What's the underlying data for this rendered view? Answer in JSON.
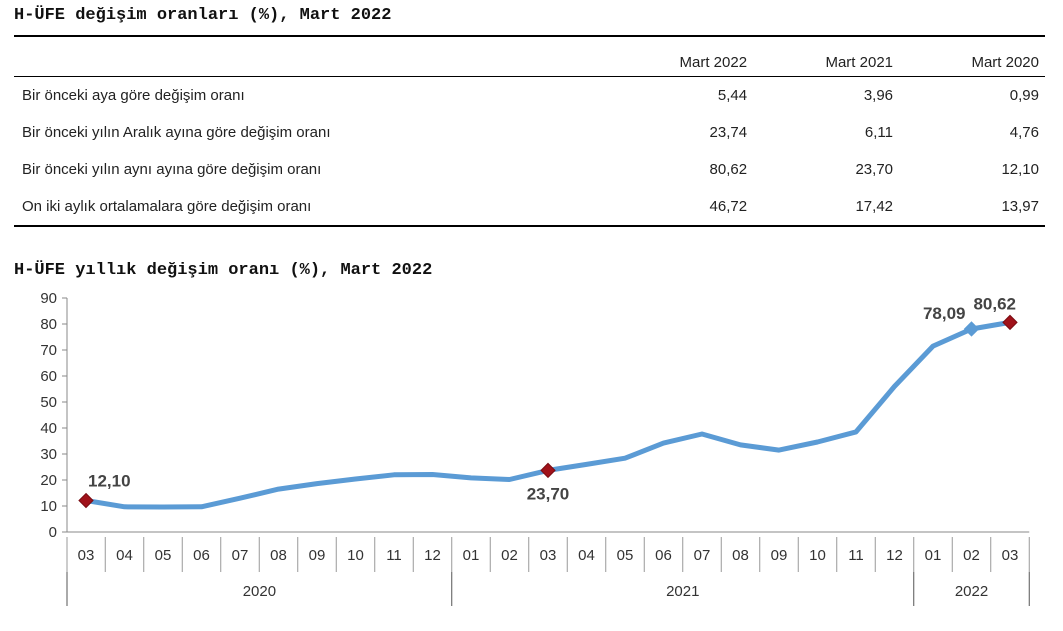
{
  "table": {
    "title": "H-ÜFE değişim oranları (%), Mart 2022",
    "columns": [
      "Mart 2022",
      "Mart 2021",
      "Mart 2020"
    ],
    "rows": [
      {
        "label": "Bir önceki aya göre değişim oranı",
        "values": [
          "5,44",
          "3,96",
          "0,99"
        ]
      },
      {
        "label": "Bir önceki yılın Aralık ayına göre değişim oranı",
        "values": [
          "23,74",
          "6,11",
          "4,76"
        ]
      },
      {
        "label": "Bir önceki yılın aynı ayına göre değişim oranı",
        "values": [
          "80,62",
          "23,70",
          "12,10"
        ]
      },
      {
        "label": "On iki aylık ortalamalara göre değişim oranı",
        "values": [
          "46,72",
          "17,42",
          "13,97"
        ]
      }
    ]
  },
  "chart_data": {
    "type": "line",
    "title": "H-ÜFE yıllık değişim oranı (%), Mart 2022",
    "xlabel": "",
    "ylabel": "",
    "ylim": [
      0,
      90
    ],
    "yticks": [
      0,
      10,
      20,
      30,
      40,
      50,
      60,
      70,
      80,
      90
    ],
    "categories": [
      "03",
      "04",
      "05",
      "06",
      "07",
      "08",
      "09",
      "10",
      "11",
      "12",
      "01",
      "02",
      "03",
      "04",
      "05",
      "06",
      "07",
      "08",
      "09",
      "10",
      "11",
      "12",
      "01",
      "02",
      "03"
    ],
    "years": [
      {
        "label": "2020",
        "count": 10
      },
      {
        "label": "2021",
        "count": 12
      },
      {
        "label": "2022",
        "count": 3
      }
    ],
    "series": [
      {
        "values": [
          12.1,
          9.7,
          9.6,
          9.7,
          13.0,
          16.5,
          18.6,
          20.4,
          22.0,
          22.1,
          20.8,
          20.2,
          23.7,
          26.0,
          28.4,
          34.2,
          37.7,
          33.5,
          31.5,
          34.6,
          38.5,
          56.0,
          71.5,
          78.09,
          80.62
        ],
        "color": "#5b9bd5"
      }
    ],
    "markers": [
      {
        "index": 0,
        "label": "12,10",
        "shape": "diamond",
        "color": "#a0121a"
      },
      {
        "index": 12,
        "label": "23,70",
        "shape": "diamond",
        "color": "#a0121a"
      },
      {
        "index": 23,
        "label": "78,09",
        "shape": "diamond",
        "color": "#5b9bd5"
      },
      {
        "index": 24,
        "label": "80,62",
        "shape": "diamond",
        "color": "#a0121a"
      }
    ],
    "grid": false,
    "legend": "none"
  }
}
